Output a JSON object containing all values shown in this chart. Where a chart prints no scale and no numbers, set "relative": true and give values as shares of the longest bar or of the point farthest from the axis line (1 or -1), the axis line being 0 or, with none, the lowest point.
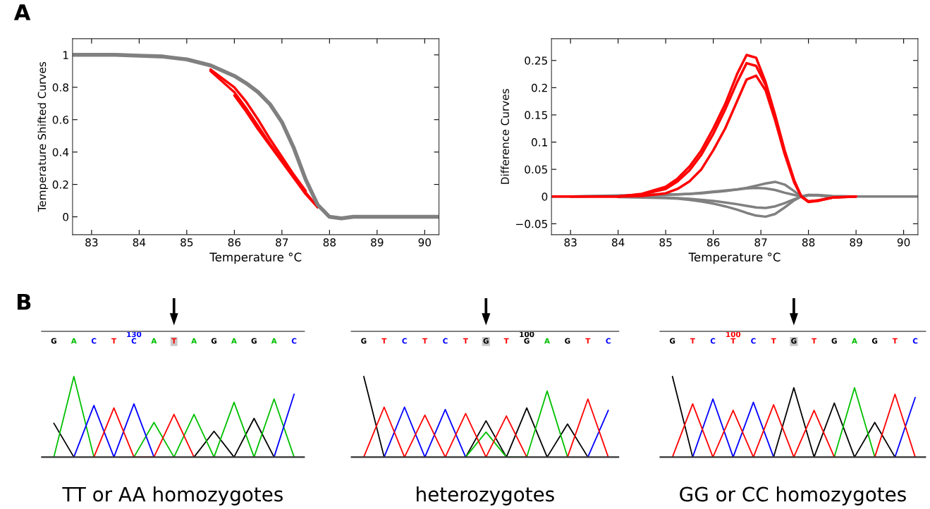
{
  "chart_data": [
    {
      "type": "line",
      "xlabel": "Temperature °C",
      "ylabel": "Temperature Shifted Curves",
      "annotations": [
        "A"
      ],
      "xlim": [
        82.6,
        90.3
      ],
      "xticks": [
        83,
        84,
        85,
        86,
        87,
        88,
        89,
        90
      ],
      "ylim": [
        -0.11,
        1.1
      ],
      "yticks": [
        0,
        0.2,
        0.4,
        0.6,
        0.8,
        1
      ],
      "x": [
        82.6,
        83,
        83.5,
        84,
        84.5,
        85,
        85.5,
        86,
        86.25,
        86.5,
        86.75,
        87,
        87.25,
        87.5,
        87.75,
        88,
        88.25,
        88.5,
        89,
        90.3
      ],
      "series": [
        {
          "color": "#ff0000",
          "x": [
            85.5,
            86,
            86.25,
            86.5,
            86.75,
            87,
            87.25,
            87.5,
            87.75
          ],
          "values": [
            0.9,
            0.77,
            0.67,
            0.56,
            0.45,
            0.35,
            0.25,
            0.15,
            0.06
          ]
        },
        {
          "color": "#ff0000",
          "x": [
            85.5,
            86,
            86.25,
            86.5,
            86.75,
            87,
            87.25,
            87.5
          ],
          "values": [
            0.91,
            0.8,
            0.71,
            0.6,
            0.48,
            0.37,
            0.26,
            0.16
          ]
        },
        {
          "color": "#ff0000",
          "x": [
            86,
            86.25,
            86.5,
            86.75,
            87,
            87.25,
            87.5,
            87.75
          ],
          "values": [
            0.75,
            0.65,
            0.54,
            0.44,
            0.34,
            0.24,
            0.14,
            0.06
          ]
        },
        {
          "color": "#808080",
          "values": [
            1,
            1,
            1,
            0.995,
            0.99,
            0.972,
            0.935,
            0.87,
            0.825,
            0.77,
            0.695,
            0.585,
            0.425,
            0.23,
            0.075,
            0,
            -0.01,
            0,
            0,
            0
          ]
        }
      ]
    },
    {
      "type": "line",
      "xlabel": "Temperature °C",
      "ylabel": "Difference Curves",
      "xlim": [
        82.6,
        90.3
      ],
      "xticks": [
        83,
        84,
        85,
        86,
        87,
        88,
        89,
        90
      ],
      "ylim": [
        -0.07,
        0.29
      ],
      "yticks": [
        {
          "value": -0.05,
          "label": "−0.05"
        },
        0,
        0.05,
        0.1,
        0.15,
        0.2,
        0.25
      ],
      "x": [
        82.6,
        83,
        84,
        84.5,
        85,
        85.25,
        85.5,
        85.75,
        86,
        86.25,
        86.5,
        86.7,
        86.9,
        87.1,
        87.3,
        87.5,
        87.7,
        87.85,
        88,
        88.2,
        88.5,
        89,
        90.3
      ],
      "series": [
        {
          "color": "#808080",
          "values": [
            0,
            0,
            0.002,
            0.003,
            0.004,
            0.004,
            0.005,
            0.006,
            0.008,
            0.01,
            0.013,
            0.016,
            0.02,
            0.024,
            0.027,
            0.022,
            0.01,
            0,
            0.003,
            0.003,
            0.001,
            0,
            0
          ]
        },
        {
          "color": "#808080",
          "x": [
            84,
            84.5,
            85,
            85.25,
            85.5,
            85.75,
            86,
            86.25,
            86.5,
            86.7,
            86.9,
            87.1,
            87.3,
            87.5,
            87.7,
            87.85,
            88,
            88.2,
            88.5
          ],
          "values": [
            -0.001,
            -0.002,
            -0.003,
            -0.004,
            -0.006,
            -0.009,
            -0.013,
            -0.018,
            -0.024,
            -0.03,
            -0.035,
            -0.037,
            -0.032,
            -0.02,
            -0.007,
            0,
            0.003,
            0.002,
            0
          ]
        },
        {
          "color": "#808080",
          "x": [
            83,
            84,
            84.5,
            85,
            85.25,
            85.5,
            85.75,
            86,
            86.25,
            86.5,
            86.7,
            86.9,
            87.1,
            87.3,
            87.5,
            87.7,
            87.85,
            88,
            88.2,
            88.5,
            89
          ],
          "values": [
            0,
            0.001,
            0.002,
            0.003,
            0.004,
            0.005,
            0.007,
            0.009,
            0.011,
            0.013,
            0.015,
            0.016,
            0.015,
            0.012,
            0.007,
            0.003,
            0,
            0.002,
            0.002,
            0,
            0
          ]
        },
        {
          "color": "#808080",
          "x": [
            84.5,
            85,
            85.25,
            85.5,
            85.75,
            86,
            86.25,
            86.5,
            86.7,
            86.9,
            87.1,
            87.3,
            87.5,
            87.7,
            87.85,
            88,
            88.2
          ],
          "values": [
            -0.001,
            -0.002,
            -0.003,
            -0.004,
            -0.006,
            -0.008,
            -0.011,
            -0.014,
            -0.017,
            -0.02,
            -0.021,
            -0.018,
            -0.012,
            -0.005,
            0,
            0.002,
            0.002
          ]
        },
        {
          "color": "#ff0000",
          "x": [
            82.6,
            83,
            84,
            84.5,
            85,
            85.25,
            85.5,
            85.75,
            86,
            86.25,
            86.5,
            86.7,
            86.9,
            87.1,
            87.3,
            87.5,
            87.7,
            87.85,
            88,
            88.2,
            88.5,
            89
          ],
          "values": [
            0,
            0,
            0,
            0.005,
            0.018,
            0.033,
            0.055,
            0.085,
            0.125,
            0.17,
            0.225,
            0.26,
            0.255,
            0.21,
            0.15,
            0.085,
            0.03,
            0,
            -0.009,
            -0.007,
            -0.002,
            0
          ]
        },
        {
          "color": "#ff0000",
          "x": [
            83,
            84,
            84.5,
            85,
            85.25,
            85.5,
            85.75,
            86,
            86.25,
            86.5,
            86.7,
            86.9,
            87.1,
            87.3,
            87.5,
            87.7,
            87.85,
            88,
            88.2,
            88.5,
            89
          ],
          "values": [
            0,
            0,
            0.004,
            0.014,
            0.028,
            0.048,
            0.077,
            0.115,
            0.16,
            0.21,
            0.245,
            0.24,
            0.205,
            0.145,
            0.08,
            0.028,
            0,
            -0.009,
            -0.007,
            -0.002,
            0
          ]
        },
        {
          "color": "#ff0000",
          "x": [
            84,
            84.5,
            85,
            85.25,
            85.5,
            85.75,
            86,
            86.25,
            86.5,
            86.7,
            86.9,
            87.1,
            87.3,
            87.5,
            87.7,
            87.85,
            88,
            88.2,
            88.5
          ],
          "values": [
            0,
            0.001,
            0.006,
            0.014,
            0.028,
            0.05,
            0.085,
            0.125,
            0.175,
            0.215,
            0.222,
            0.195,
            0.14,
            0.078,
            0.026,
            0,
            -0.01,
            -0.008,
            -0.002
          ]
        }
      ]
    },
    {
      "type": "line",
      "relative": true,
      "tick_labels": "x",
      "xlabel": "TT or AA homozygotes",
      "annotations": [
        "B"
      ],
      "categories": [
        "G",
        "A",
        "C",
        "T",
        "130\nC",
        "A",
        "T",
        "A",
        "G",
        "A",
        "G",
        "A",
        "C"
      ],
      "series": [
        {
          "color": "#000000",
          "values": [
            0.42,
            0,
            null,
            null,
            null,
            null,
            null,
            0,
            0.32,
            0,
            0.48,
            0,
            null
          ]
        },
        {
          "color": "#00c000",
          "values": [
            0,
            1,
            0,
            null,
            0,
            0.43,
            0,
            0.53,
            0,
            0.68,
            0,
            0.72,
            0
          ]
        },
        {
          "color": "#0000ff",
          "values": [
            null,
            0,
            0.64,
            0,
            0.66,
            0,
            null,
            null,
            null,
            null,
            null,
            0,
            0.78
          ]
        },
        {
          "color": "#ff0000",
          "values": [
            null,
            null,
            0,
            0.61,
            0,
            0,
            0.53,
            0,
            null,
            null,
            null,
            null,
            null
          ]
        }
      ]
    },
    {
      "type": "line",
      "relative": true,
      "tick_labels": "x",
      "xlabel": "heterozygotes",
      "categories": [
        "G",
        "T",
        "C",
        "T",
        "C",
        "T",
        "G",
        "T",
        "100\nG",
        "A",
        "G",
        "T",
        "C"
      ],
      "series": [
        {
          "color": "#000000",
          "values": [
            1,
            0,
            null,
            null,
            null,
            0,
            0.45,
            0,
            0.61,
            0,
            0.41,
            0,
            null
          ]
        },
        {
          "color": "#00c000",
          "values": [
            null,
            null,
            null,
            null,
            null,
            0,
            0.31,
            0,
            0,
            0.82,
            0,
            null,
            null
          ]
        },
        {
          "color": "#0000ff",
          "values": [
            null,
            0,
            0.62,
            0,
            0.59,
            0,
            null,
            null,
            null,
            null,
            null,
            0,
            0.58
          ]
        },
        {
          "color": "#ff0000",
          "values": [
            0,
            0.62,
            0,
            0.52,
            0,
            0.54,
            0,
            0.51,
            0,
            null,
            0,
            0.72,
            0
          ]
        }
      ]
    },
    {
      "type": "line",
      "relative": true,
      "tick_labels": "x",
      "xlabel": "GG or CC homozygotes",
      "categories": [
        "G",
        "T",
        "C",
        "100\nT",
        "C",
        "T",
        "G",
        "T",
        "G",
        "A",
        "G",
        "T",
        "C"
      ],
      "series": [
        {
          "color": "#000000",
          "values": [
            1,
            0,
            null,
            null,
            null,
            0,
            0.86,
            0,
            0.67,
            0,
            0.43,
            0,
            null
          ]
        },
        {
          "color": "#00c000",
          "values": [
            null,
            null,
            null,
            null,
            null,
            null,
            null,
            null,
            0,
            0.86,
            0,
            null,
            null
          ]
        },
        {
          "color": "#0000ff",
          "values": [
            null,
            0,
            0.72,
            0,
            0.68,
            0,
            null,
            null,
            null,
            null,
            null,
            0,
            0.74
          ]
        },
        {
          "color": "#ff0000",
          "values": [
            0,
            0.66,
            0,
            0.58,
            0,
            0.65,
            0,
            0.58,
            0,
            null,
            0,
            0.78,
            0
          ]
        }
      ]
    }
  ]
}
